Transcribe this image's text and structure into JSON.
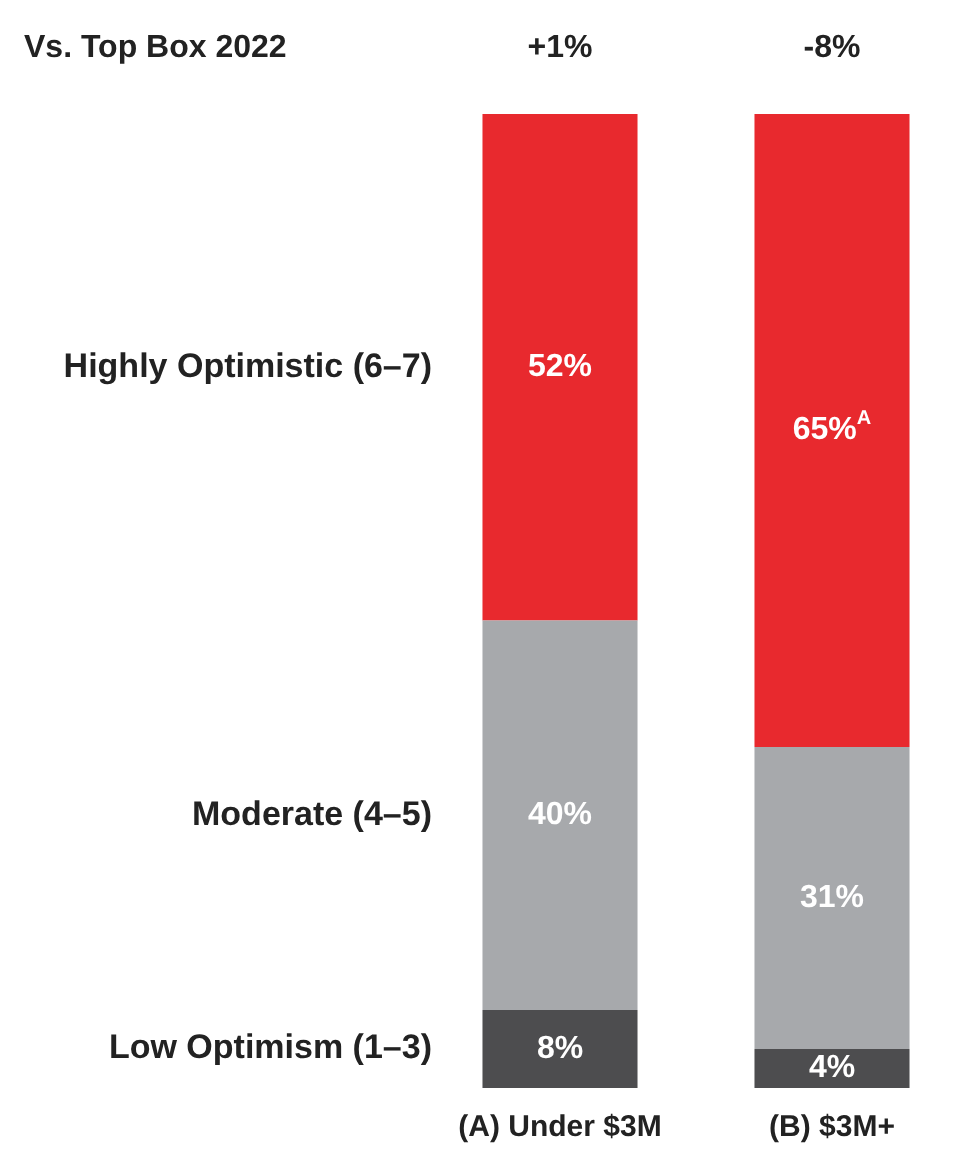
{
  "chart_data": {
    "type": "bar",
    "stacked": true,
    "categories": [
      "(A) Under $3M",
      "(B) $3M+"
    ],
    "series": [
      {
        "name": "Low Optimism (1–3)",
        "color": "#4d4d4f",
        "values": [
          8,
          4
        ],
        "value_labels": [
          "8%",
          "4%"
        ]
      },
      {
        "name": "Moderate (4–5)",
        "color": "#a7a9ac",
        "values": [
          40,
          31
        ],
        "value_labels": [
          "40%",
          "31%"
        ]
      },
      {
        "name": "Highly Optimistic (6–7)",
        "color": "#e8292e",
        "values": [
          52,
          65
        ],
        "value_labels": [
          "52%",
          "65%$^{A}$"
        ]
      }
    ],
    "ylim": [
      0,
      100
    ],
    "tick_labels": "x",
    "legend": "left",
    "grid": false,
    "annotations": [
      "Vs. Top Box 2022",
      "+1%",
      "-8%"
    ]
  }
}
